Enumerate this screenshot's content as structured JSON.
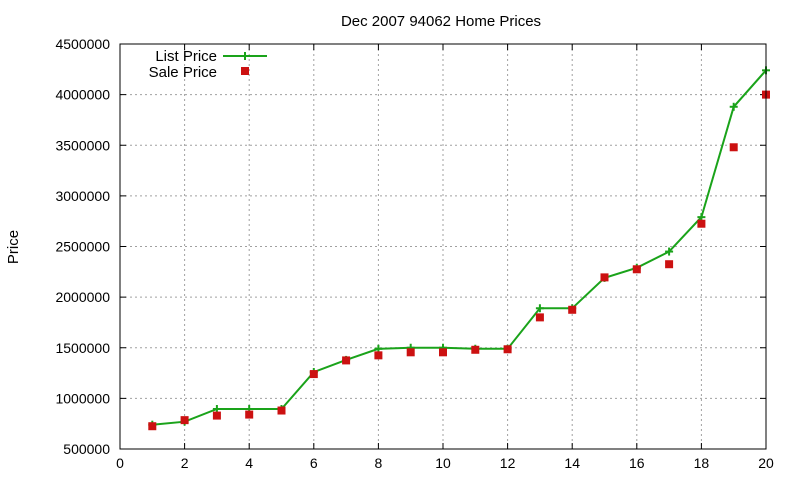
{
  "chart_data": {
    "type": "line",
    "title": "Dec 2007 94062 Home Prices",
    "xlabel": "",
    "ylabel": "Price",
    "xlim": [
      0,
      20
    ],
    "ylim": [
      500000,
      4500000
    ],
    "xticks": [
      0,
      2,
      4,
      6,
      8,
      10,
      12,
      14,
      16,
      18,
      20
    ],
    "yticks": [
      500000,
      1000000,
      1500000,
      2000000,
      2500000,
      3000000,
      3500000,
      4000000,
      4500000
    ],
    "grid": true,
    "legend_position": "top-left",
    "series": [
      {
        "name": "List Price",
        "style": "line-with-plus-markers",
        "color": "#1aa31a",
        "x": [
          1,
          2,
          3,
          4,
          5,
          6,
          7,
          8,
          9,
          10,
          11,
          12,
          13,
          14,
          15,
          16,
          17,
          18,
          19,
          20
        ],
        "values": [
          740000,
          770000,
          895000,
          895000,
          895000,
          1260000,
          1380000,
          1490000,
          1500000,
          1500000,
          1490000,
          1490000,
          1890000,
          1890000,
          2190000,
          2290000,
          2450000,
          2790000,
          3880000,
          4240000
        ]
      },
      {
        "name": "Sale Price",
        "style": "square-markers",
        "color": "#cc1111",
        "x": [
          1,
          2,
          3,
          4,
          5,
          6,
          7,
          8,
          9,
          10,
          11,
          12,
          13,
          14,
          15,
          16,
          17,
          18,
          19,
          20
        ],
        "values": [
          725000,
          785000,
          830000,
          840000,
          880000,
          1240000,
          1375000,
          1425000,
          1455000,
          1455000,
          1480000,
          1485000,
          1800000,
          1875000,
          2195000,
          2275000,
          2325000,
          2725000,
          3480000,
          4000000
        ]
      }
    ]
  }
}
